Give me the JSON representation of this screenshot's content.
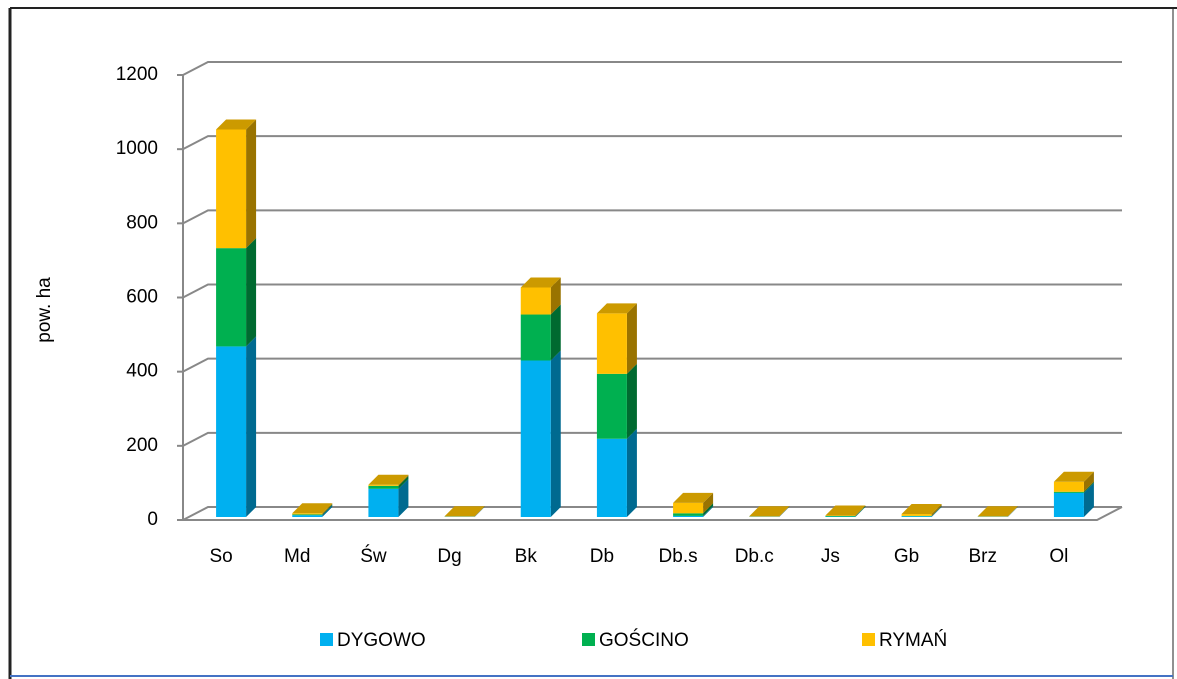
{
  "chart_data": {
    "type": "bar",
    "stacked": true,
    "y_label": "pow.  ha",
    "categories": [
      "So",
      "Md",
      "Św",
      "Dg",
      "Bk",
      "Db",
      "Db.s",
      "Db.c",
      "Js",
      "Gb",
      "Brz",
      "Ol"
    ],
    "series": [
      {
        "name": "DYGOWO",
        "color": "#00b0f0",
        "values": [
          460,
          5,
          76,
          1,
          422,
          211,
          3,
          1,
          1,
          2,
          1,
          65
        ]
      },
      {
        "name": "GOŚCINO",
        "color": "#00b050",
        "values": [
          265,
          2,
          8,
          0,
          124,
          175,
          7,
          0,
          2,
          1,
          0,
          3
        ]
      },
      {
        "name": "RYMAŃ",
        "color": "#ffc000",
        "values": [
          320,
          3,
          3,
          1,
          73,
          163,
          28,
          1,
          1,
          5,
          1,
          27
        ]
      }
    ],
    "ylim": [
      0,
      1200
    ],
    "yticks": [
      0,
      200,
      400,
      600,
      800,
      1000,
      1200
    ],
    "grid": true,
    "legend": "bottom"
  }
}
